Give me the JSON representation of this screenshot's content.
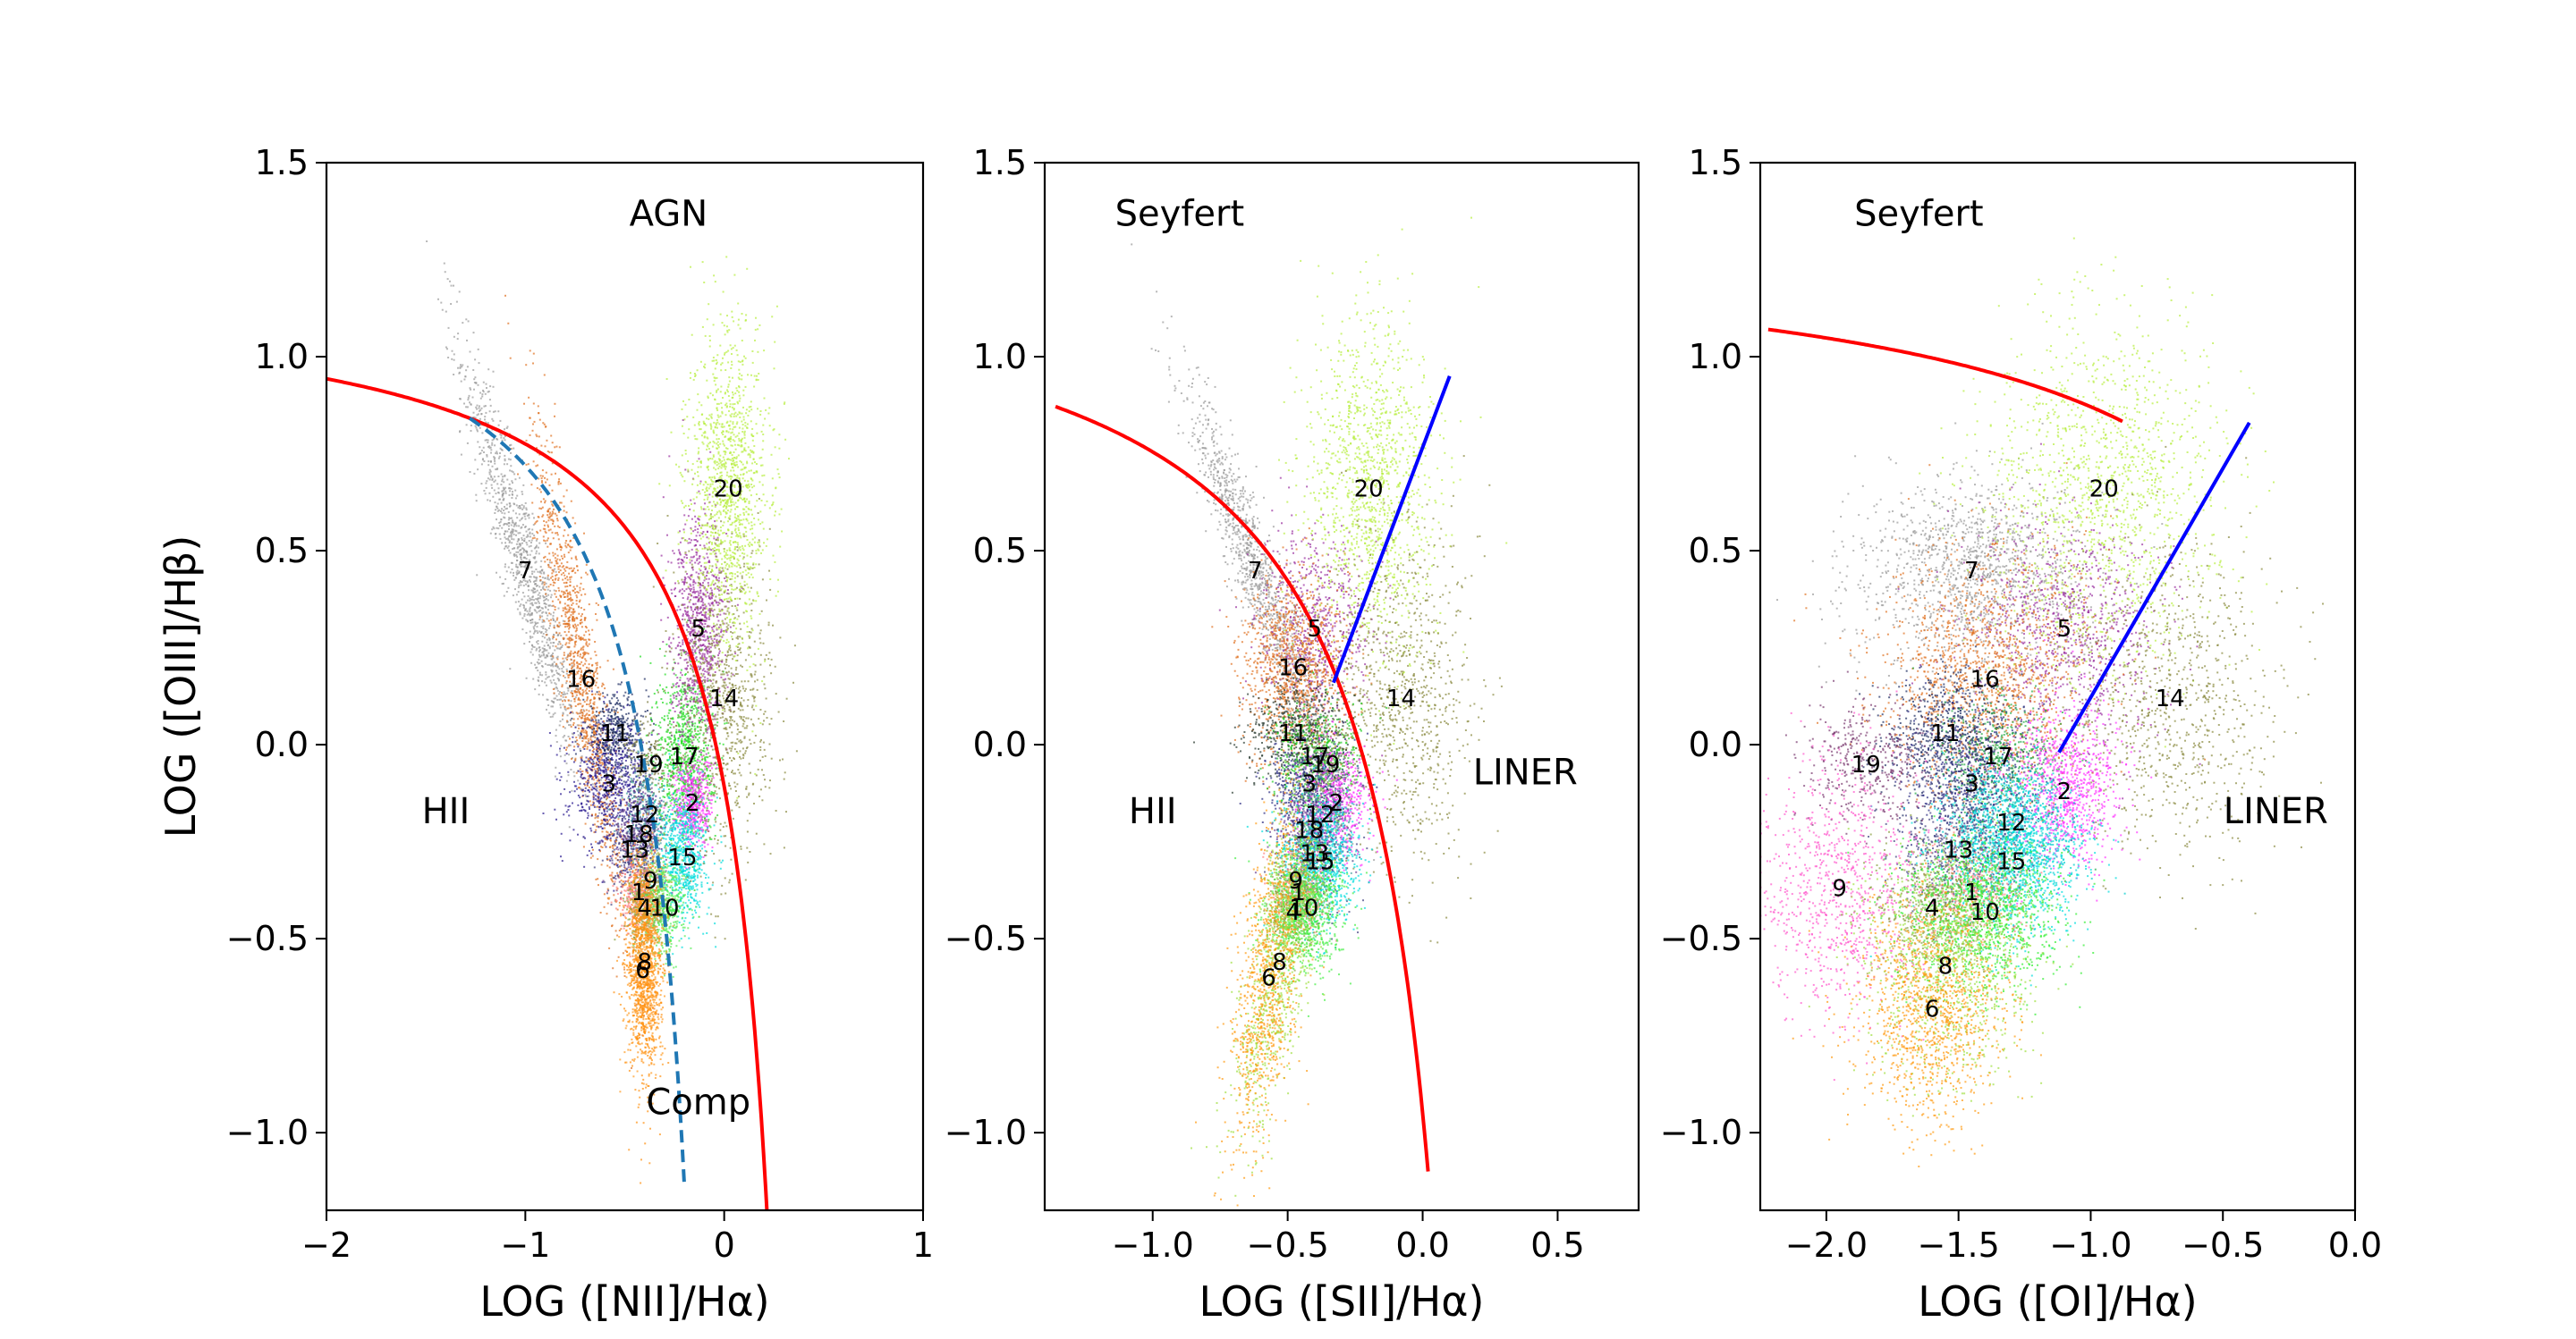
{
  "chart_data": [
    {
      "type": "scatter",
      "xlabel": "LOG ([NII]/Hα)",
      "ylabel": "LOG ([OIII]/Hβ)",
      "xlim": [
        -2,
        1
      ],
      "ylim": [
        -1.2,
        1.5
      ],
      "xticks": [
        {
          "v": -2,
          "label": "−2"
        },
        {
          "v": -1,
          "label": "−1"
        },
        {
          "v": 0,
          "label": "0"
        },
        {
          "v": 1,
          "label": "1"
        }
      ],
      "yticks": [
        {
          "v": -1.0,
          "label": "−1.0"
        },
        {
          "v": -0.5,
          "label": "−0.5"
        },
        {
          "v": 0.0,
          "label": "0.0"
        },
        {
          "v": 0.5,
          "label": "0.5"
        },
        {
          "v": 1.0,
          "label": "1.0"
        },
        {
          "v": 1.5,
          "label": "1.5"
        }
      ],
      "annotations": [
        {
          "text": "AGN",
          "x": -0.28,
          "y": 1.37
        },
        {
          "text": "HII",
          "x": -1.4,
          "y": -0.17
        },
        {
          "text": "Comp",
          "x": -0.13,
          "y": -0.92
        }
      ],
      "boundary_lines": [
        {
          "name": "kewley",
          "color": "#ff0000",
          "style": "solid",
          "kind": "hyperbola",
          "a": 0.61,
          "b": 0.47,
          "c": 1.19,
          "x_from": -2.0,
          "x_to": 0.22
        },
        {
          "name": "kauffmann",
          "color": "#1f77b4",
          "style": "dashed",
          "kind": "hyperbola",
          "a": 0.61,
          "b": 0.05,
          "c": 1.3,
          "x_from": -1.28,
          "x_to": -0.2
        }
      ],
      "clusters": [
        {
          "label": "7",
          "x": -1.0,
          "y": 0.45,
          "sx": 0.16,
          "sy": 0.1,
          "tilt": -0.55,
          "color": "#9a9a9a",
          "n": 1200
        },
        {
          "label": "16",
          "x": -0.72,
          "y": 0.17,
          "sx": 0.12,
          "sy": 0.14,
          "tilt": -0.8,
          "color": "#e07020",
          "n": 1300
        },
        {
          "label": "11",
          "x": -0.55,
          "y": 0.03,
          "sx": 0.08,
          "sy": 0.05,
          "tilt": 0,
          "color": "#1a2a60",
          "n": 400
        },
        {
          "label": "3",
          "x": -0.58,
          "y": -0.1,
          "sx": 0.1,
          "sy": 0.08,
          "tilt": 0,
          "color": "#2a1a90",
          "n": 700
        },
        {
          "label": "19",
          "x": -0.38,
          "y": -0.05,
          "sx": 0.06,
          "sy": 0.06,
          "tilt": 0,
          "color": "#7a7a40",
          "n": 200
        },
        {
          "label": "12",
          "x": -0.4,
          "y": -0.18,
          "sx": 0.06,
          "sy": 0.06,
          "tilt": 0,
          "color": "#40a0a0",
          "n": 250
        },
        {
          "label": "18",
          "x": -0.43,
          "y": -0.23,
          "sx": 0.07,
          "sy": 0.06,
          "tilt": 0,
          "color": "#6a3a90",
          "n": 300
        },
        {
          "label": "13",
          "x": -0.45,
          "y": -0.27,
          "sx": 0.07,
          "sy": 0.06,
          "tilt": 0,
          "color": "#404080",
          "n": 300
        },
        {
          "label": "17",
          "x": -0.2,
          "y": -0.03,
          "sx": 0.07,
          "sy": 0.12,
          "tilt": 0,
          "color": "#22dd22",
          "n": 900
        },
        {
          "label": "2",
          "x": -0.16,
          "y": -0.15,
          "sx": 0.05,
          "sy": 0.06,
          "tilt": 0,
          "color": "#ff33ff",
          "n": 500
        },
        {
          "label": "15",
          "x": -0.21,
          "y": -0.29,
          "sx": 0.06,
          "sy": 0.08,
          "tilt": 0,
          "color": "#00dddd",
          "n": 700
        },
        {
          "label": "9",
          "x": -0.37,
          "y": -0.35,
          "sx": 0.05,
          "sy": 0.05,
          "tilt": 0,
          "color": "#b0c040",
          "n": 200
        },
        {
          "label": "1",
          "x": -0.43,
          "y": -0.38,
          "sx": 0.05,
          "sy": 0.05,
          "tilt": 0,
          "color": "#ff8080",
          "n": 350
        },
        {
          "label": "4",
          "x": -0.4,
          "y": -0.42,
          "sx": 0.05,
          "sy": 0.05,
          "tilt": 0,
          "color": "#8aa040",
          "n": 300
        },
        {
          "label": "10",
          "x": -0.3,
          "y": -0.42,
          "sx": 0.05,
          "sy": 0.06,
          "tilt": 0,
          "color": "#55ee55",
          "n": 400
        },
        {
          "label": "5",
          "x": -0.13,
          "y": 0.3,
          "sx": 0.07,
          "sy": 0.14,
          "tilt": 0,
          "color": "#9a30a0",
          "n": 900
        },
        {
          "label": "14",
          "x": 0.0,
          "y": 0.12,
          "sx": 0.12,
          "sy": 0.2,
          "tilt": 0,
          "color": "#8a8a40",
          "n": 900
        },
        {
          "label": "20",
          "x": 0.02,
          "y": 0.66,
          "sx": 0.1,
          "sy": 0.2,
          "tilt": 0,
          "color": "#b8ee40",
          "n": 1300
        },
        {
          "label": "8",
          "x": -0.4,
          "y": -0.56,
          "sx": 0.05,
          "sy": 0.12,
          "tilt": 0,
          "color": "#ff9a20",
          "n": 700
        },
        {
          "label": "6",
          "x": -0.41,
          "y": -0.58,
          "sx": 0.04,
          "sy": 0.16,
          "tilt": 0,
          "color": "#ff9010",
          "n": 800
        }
      ]
    },
    {
      "type": "scatter",
      "xlabel": "LOG ([SII]/Hα)",
      "ylabel": "",
      "xlim": [
        -1.4,
        0.8
      ],
      "ylim": [
        -1.2,
        1.5
      ],
      "xticks": [
        {
          "v": -1.0,
          "label": "−1.0"
        },
        {
          "v": -0.5,
          "label": "−0.5"
        },
        {
          "v": 0.0,
          "label": "0.0"
        },
        {
          "v": 0.5,
          "label": "0.5"
        }
      ],
      "yticks": [
        {
          "v": -1.0,
          "label": "−1.0"
        },
        {
          "v": -0.5,
          "label": "−0.5"
        },
        {
          "v": 0.0,
          "label": "0.0"
        },
        {
          "v": 0.5,
          "label": "0.5"
        },
        {
          "v": 1.0,
          "label": "1.0"
        },
        {
          "v": 1.5,
          "label": "1.5"
        }
      ],
      "annotations": [
        {
          "text": "Seyfert",
          "x": -0.9,
          "y": 1.37
        },
        {
          "text": "HII",
          "x": -1.0,
          "y": -0.17
        },
        {
          "text": "LINER",
          "x": 0.38,
          "y": -0.07
        }
      ],
      "boundary_lines": [
        {
          "name": "kewley",
          "color": "#ff0000",
          "style": "solid",
          "kind": "hyperbola",
          "a": 0.72,
          "b": 0.32,
          "c": 1.3,
          "x_from": -1.36,
          "x_to": 0.02
        },
        {
          "name": "seyfert-liner",
          "color": "#0000ff",
          "style": "solid",
          "kind": "line",
          "x1": -0.33,
          "y1": 0.16,
          "x2": 0.1,
          "y2": 0.95
        }
      ],
      "clusters": [
        {
          "label": "7",
          "x": -0.62,
          "y": 0.45,
          "sx": 0.13,
          "sy": 0.08,
          "tilt": -0.55,
          "color": "#9a9a9a",
          "n": 1100
        },
        {
          "label": "5",
          "x": -0.4,
          "y": 0.3,
          "sx": 0.1,
          "sy": 0.12,
          "tilt": 0,
          "color": "#9a30a0",
          "n": 700
        },
        {
          "label": "16",
          "x": -0.48,
          "y": 0.2,
          "sx": 0.1,
          "sy": 0.12,
          "tilt": 0,
          "color": "#e07020",
          "n": 1100
        },
        {
          "label": "20",
          "x": -0.2,
          "y": 0.66,
          "sx": 0.12,
          "sy": 0.22,
          "tilt": 0,
          "color": "#b8ee40",
          "n": 1300
        },
        {
          "label": "14",
          "x": -0.08,
          "y": 0.12,
          "sx": 0.13,
          "sy": 0.22,
          "tilt": 0,
          "color": "#8a8a40",
          "n": 900
        },
        {
          "label": "11",
          "x": -0.48,
          "y": 0.03,
          "sx": 0.09,
          "sy": 0.07,
          "tilt": 0,
          "color": "#2a3a30",
          "n": 500
        },
        {
          "label": "17",
          "x": -0.4,
          "y": -0.03,
          "sx": 0.08,
          "sy": 0.07,
          "tilt": 0,
          "color": "#22cc22",
          "n": 500
        },
        {
          "label": "19",
          "x": -0.36,
          "y": -0.05,
          "sx": 0.06,
          "sy": 0.06,
          "tilt": 0,
          "color": "#7a7a40",
          "n": 250
        },
        {
          "label": "3",
          "x": -0.42,
          "y": -0.1,
          "sx": 0.08,
          "sy": 0.07,
          "tilt": 0,
          "color": "#2a2a80",
          "n": 500
        },
        {
          "label": "2",
          "x": -0.32,
          "y": -0.15,
          "sx": 0.06,
          "sy": 0.07,
          "tilt": 0,
          "color": "#ff33ff",
          "n": 500
        },
        {
          "label": "12",
          "x": -0.38,
          "y": -0.18,
          "sx": 0.06,
          "sy": 0.06,
          "tilt": 0,
          "color": "#40a0a0",
          "n": 300
        },
        {
          "label": "18",
          "x": -0.42,
          "y": -0.22,
          "sx": 0.07,
          "sy": 0.06,
          "tilt": 0,
          "color": "#6a3a90",
          "n": 300
        },
        {
          "label": "13",
          "x": -0.4,
          "y": -0.28,
          "sx": 0.07,
          "sy": 0.07,
          "tilt": 0,
          "color": "#404080",
          "n": 300
        },
        {
          "label": "15",
          "x": -0.38,
          "y": -0.3,
          "sx": 0.07,
          "sy": 0.08,
          "tilt": 0,
          "color": "#00dddd",
          "n": 800
        },
        {
          "label": "9",
          "x": -0.47,
          "y": -0.35,
          "sx": 0.05,
          "sy": 0.05,
          "tilt": 0,
          "color": "#b0c040",
          "n": 200
        },
        {
          "label": "1",
          "x": -0.46,
          "y": -0.38,
          "sx": 0.05,
          "sy": 0.05,
          "tilt": 0,
          "color": "#ff8080",
          "n": 250
        },
        {
          "label": "4",
          "x": -0.48,
          "y": -0.43,
          "sx": 0.05,
          "sy": 0.05,
          "tilt": 0,
          "color": "#8aa040",
          "n": 300
        },
        {
          "label": "10",
          "x": -0.44,
          "y": -0.42,
          "sx": 0.07,
          "sy": 0.08,
          "tilt": 0,
          "color": "#44ee44",
          "n": 900
        },
        {
          "label": "8",
          "x": -0.53,
          "y": -0.56,
          "sx": 0.08,
          "sy": 0.16,
          "tilt": 0.6,
          "color": "#a0e040",
          "n": 900
        },
        {
          "label": "6",
          "x": -0.57,
          "y": -0.6,
          "sx": 0.07,
          "sy": 0.18,
          "tilt": 0.6,
          "color": "#ff9a10",
          "n": 1000
        }
      ]
    },
    {
      "type": "scatter",
      "xlabel": "LOG ([OI]/Hα)",
      "ylabel": "",
      "xlim": [
        -2.25,
        0.0
      ],
      "ylim": [
        -1.2,
        1.5
      ],
      "xticks": [
        {
          "v": -2.0,
          "label": "−2.0"
        },
        {
          "v": -1.5,
          "label": "−1.5"
        },
        {
          "v": -1.0,
          "label": "−1.0"
        },
        {
          "v": -0.5,
          "label": "−0.5"
        },
        {
          "v": 0.0,
          "label": "0.0"
        }
      ],
      "yticks": [
        {
          "v": -1.0,
          "label": "−1.0"
        },
        {
          "v": -0.5,
          "label": "−0.5"
        },
        {
          "v": 0.0,
          "label": "0.0"
        },
        {
          "v": 0.5,
          "label": "0.5"
        },
        {
          "v": 1.0,
          "label": "1.0"
        },
        {
          "v": 1.5,
          "label": "1.5"
        }
      ],
      "annotations": [
        {
          "text": "Seyfert",
          "x": -1.65,
          "y": 1.37
        },
        {
          "text": "LINER",
          "x": -0.3,
          "y": -0.17
        }
      ],
      "boundary_lines": [
        {
          "name": "kewley",
          "color": "#ff0000",
          "style": "solid",
          "kind": "hyperbola",
          "a": 0.73,
          "b": 0.59,
          "c": 1.33,
          "x_from": -2.22,
          "x_to": -0.88
        },
        {
          "name": "seyfert-liner",
          "color": "#0000ff",
          "style": "solid",
          "kind": "line",
          "x1": -1.12,
          "y1": -0.02,
          "x2": -0.4,
          "y2": 0.83
        }
      ],
      "clusters": [
        {
          "label": "7",
          "x": -1.45,
          "y": 0.45,
          "sx": 0.22,
          "sy": 0.12,
          "tilt": 0,
          "color": "#9a9a9a",
          "n": 1300
        },
        {
          "label": "5",
          "x": -1.1,
          "y": 0.3,
          "sx": 0.18,
          "sy": 0.15,
          "tilt": 0,
          "color": "#9a30a0",
          "n": 900
        },
        {
          "label": "16",
          "x": -1.4,
          "y": 0.17,
          "sx": 0.2,
          "sy": 0.16,
          "tilt": 0,
          "color": "#e07020",
          "n": 1500
        },
        {
          "label": "20",
          "x": -0.95,
          "y": 0.66,
          "sx": 0.22,
          "sy": 0.22,
          "tilt": 0,
          "color": "#b8ee40",
          "n": 1400
        },
        {
          "label": "14",
          "x": -0.7,
          "y": 0.12,
          "sx": 0.2,
          "sy": 0.2,
          "tilt": 0,
          "color": "#8a8a40",
          "n": 900
        },
        {
          "label": "11",
          "x": -1.55,
          "y": 0.03,
          "sx": 0.12,
          "sy": 0.08,
          "tilt": 0,
          "color": "#1a2a60",
          "n": 600
        },
        {
          "label": "19",
          "x": -1.85,
          "y": -0.05,
          "sx": 0.12,
          "sy": 0.08,
          "tilt": 0,
          "color": "#7a3a70",
          "n": 400
        },
        {
          "label": "17",
          "x": -1.35,
          "y": -0.03,
          "sx": 0.12,
          "sy": 0.08,
          "tilt": 0,
          "color": "#22aa44",
          "n": 500
        },
        {
          "label": "3",
          "x": -1.45,
          "y": -0.1,
          "sx": 0.12,
          "sy": 0.1,
          "tilt": 0,
          "color": "#2a2a80",
          "n": 700
        },
        {
          "label": "2",
          "x": -1.1,
          "y": -0.12,
          "sx": 0.1,
          "sy": 0.1,
          "tilt": 0,
          "color": "#ff33ff",
          "n": 900
        },
        {
          "label": "12",
          "x": -1.3,
          "y": -0.2,
          "sx": 0.12,
          "sy": 0.08,
          "tilt": 0,
          "color": "#00cccc",
          "n": 700
        },
        {
          "label": "13",
          "x": -1.5,
          "y": -0.27,
          "sx": 0.12,
          "sy": 0.08,
          "tilt": 0,
          "color": "#404080",
          "n": 500
        },
        {
          "label": "15",
          "x": -1.3,
          "y": -0.3,
          "sx": 0.14,
          "sy": 0.1,
          "tilt": 0,
          "color": "#00dddd",
          "n": 1200
        },
        {
          "label": "9",
          "x": -1.95,
          "y": -0.37,
          "sx": 0.16,
          "sy": 0.16,
          "tilt": 0,
          "color": "#ff55cc",
          "n": 900
        },
        {
          "label": "1",
          "x": -1.45,
          "y": -0.38,
          "sx": 0.1,
          "sy": 0.07,
          "tilt": 0,
          "color": "#ff8080",
          "n": 400
        },
        {
          "label": "4",
          "x": -1.6,
          "y": -0.42,
          "sx": 0.12,
          "sy": 0.08,
          "tilt": 0,
          "color": "#8aa040",
          "n": 500
        },
        {
          "label": "10",
          "x": -1.4,
          "y": -0.43,
          "sx": 0.14,
          "sy": 0.1,
          "tilt": 0,
          "color": "#33ee33",
          "n": 1200
        },
        {
          "label": "8",
          "x": -1.55,
          "y": -0.57,
          "sx": 0.16,
          "sy": 0.14,
          "tilt": 0,
          "color": "#a0e040",
          "n": 1000
        },
        {
          "label": "6",
          "x": -1.6,
          "y": -0.68,
          "sx": 0.14,
          "sy": 0.14,
          "tilt": 0,
          "color": "#ff9a10",
          "n": 1200
        }
      ]
    }
  ]
}
